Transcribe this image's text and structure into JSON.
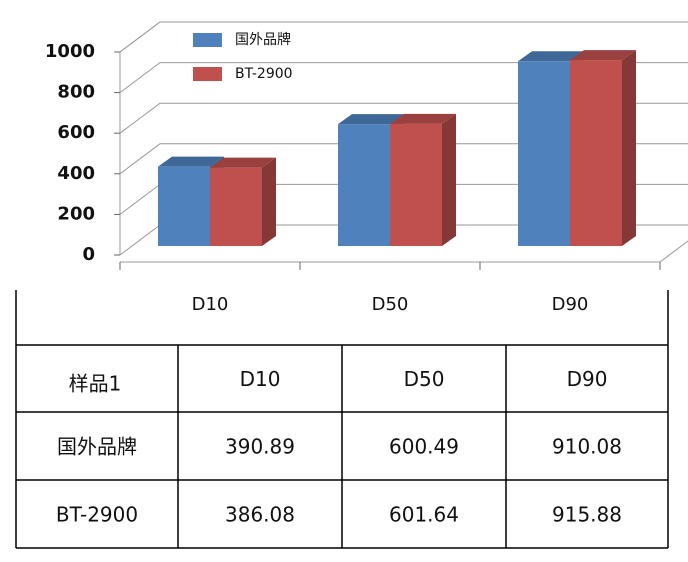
{
  "chart_data": {
    "type": "bar",
    "categories": [
      "D10",
      "D50",
      "D90"
    ],
    "series": [
      {
        "name": "国外品牌",
        "color": "#4f81bd",
        "values": [
          390.89,
          600.49,
          910.08
        ]
      },
      {
        "name": "BT-2900",
        "color": "#c0504d",
        "values": [
          386.08,
          601.64,
          915.88
        ]
      }
    ],
    "ylim": [
      0,
      1000
    ],
    "yticks": [
      0,
      200,
      400,
      600,
      800,
      1000
    ],
    "grid": true
  },
  "table": {
    "header": "样品1"
  }
}
